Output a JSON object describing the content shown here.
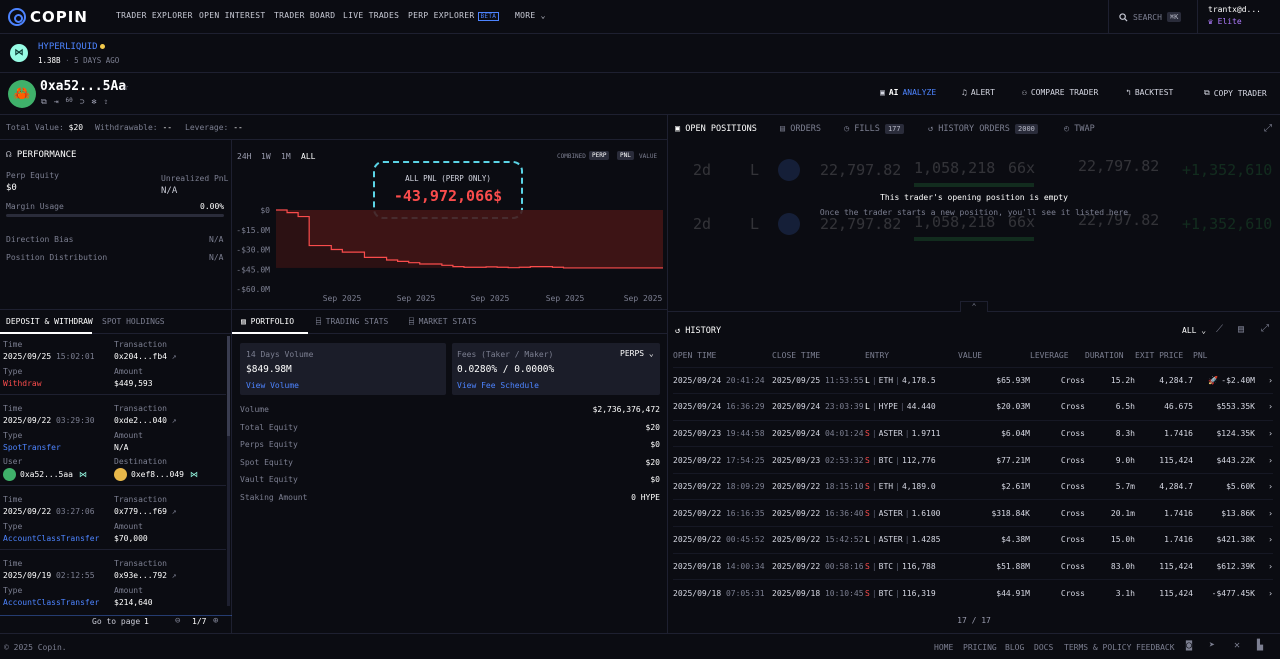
{
  "nav": {
    "brand": "COPIN",
    "items": [
      "TRADER EXPLORER",
      "OPEN INTEREST",
      "TRADER BOARD",
      "LIVE TRADES",
      "PERP EXPLORER"
    ],
    "beta": "BETA",
    "more": "MORE",
    "search_label": "SEARCH",
    "search_kbd": "⌘K",
    "user": "trantx@d...",
    "tier": "Elite"
  },
  "protocol": {
    "name": "HYPERLIQUID",
    "volume": "1.38B",
    "updated": "5 DAYS AGO"
  },
  "trader": {
    "address": "0xa52...5Aa",
    "actions": [
      "AI",
      "ANALYZE",
      "ALERT",
      "COMPARE TRADER",
      "BACKTEST",
      "COPY TRADER"
    ]
  },
  "summary": {
    "total_value_label": "Total Value:",
    "total_value": "$20",
    "withdrawable_label": "Withdrawable:",
    "withdrawable": "--",
    "leverage_label": "Leverage:",
    "leverage": "--"
  },
  "performance": {
    "title": "PERFORMANCE",
    "perp_equity_label": "Perp Equity",
    "perp_equity": "$0",
    "unrealized_label": "Unrealized PnL",
    "unrealized": "N/A",
    "margin_label": "Margin Usage",
    "margin": "0.00%",
    "direction_label": "Direction Bias",
    "direction": "N/A",
    "distribution_label": "Position Distribution",
    "distribution": "N/A"
  },
  "chart_controls": {
    "ranges": [
      "24H",
      "1W",
      "1M",
      "ALL"
    ],
    "combined": "COMBINED",
    "perp": "PERP",
    "pnl": "PNL",
    "value": "VALUE"
  },
  "chart_data": {
    "type": "area",
    "title": "ALL PNL (PERP ONLY)",
    "headline": "-43,972,066$",
    "y_ticks": [
      "$0",
      "-$15.0M",
      "-$30.0M",
      "-$45.0M",
      "-$60.0M"
    ],
    "x_ticks": [
      "Sep 2025",
      "Sep 2025",
      "Sep 2025",
      "Sep 2025",
      "Sep 2025"
    ],
    "ylim": [
      -60,
      0
    ],
    "values": [
      0,
      -2,
      -5,
      -27,
      -27,
      -30,
      -32,
      -32,
      -36,
      -36,
      -38,
      -39,
      -40,
      -41,
      -41,
      -42,
      -43,
      -43.5,
      -43.5,
      -43.2,
      -43.5,
      -43.8,
      -43.5,
      -43,
      -43,
      -43.5,
      -44,
      -44,
      -44,
      -44,
      -44,
      -44,
      -44,
      -44,
      -44,
      -44
    ]
  },
  "positions_tabs": {
    "open": "OPEN POSITIONS",
    "orders": "ORDERS",
    "fills": "FILLS",
    "fills_count": "177",
    "history": "HISTORY ORDERS",
    "history_count": "2000",
    "twap": "TWAP"
  },
  "empty": {
    "title": "This trader's opening position is empty",
    "subtitle": "Once the trader starts a new position, you'll see it listed here",
    "ghost_rows": [
      {
        "age": "2d",
        "side": "L",
        "value": "22,797.82",
        "size": "1,058,218",
        "lev": "66x",
        "pnl": "22,797.82",
        "roi": "+1,352,610"
      },
      {
        "age": "2d",
        "side": "L",
        "value": "22,797.82",
        "size": "1,058,218",
        "lev": "66x",
        "pnl": "22,797.82",
        "roi": "+1,352,610"
      }
    ]
  },
  "deposit_tabs": {
    "deposit": "DEPOSIT & WITHDRAW",
    "spot": "SPOT HOLDINGS"
  },
  "deposits": [
    {
      "time": "2025/09/25",
      "clock": "15:02:01",
      "tx": "0x204...fb4",
      "type": "Withdraw",
      "amount": "$449,593",
      "type_color": "#fa4c4c"
    },
    {
      "time": "2025/09/22",
      "clock": "03:29:30",
      "tx": "0xde2...040",
      "type": "SpotTransfer",
      "amount": "N/A",
      "type_color": "#4d84ff",
      "user": "0xa52...5aa",
      "dest": "0xef8...049"
    },
    {
      "time": "2025/09/22",
      "clock": "03:27:06",
      "tx": "0x779...f69",
      "type": "AccountClassTransfer",
      "amount": "$70,000",
      "type_color": "#4d84ff"
    },
    {
      "time": "2025/09/19",
      "clock": "02:12:55",
      "tx": "0x93e...792",
      "type": "AccountClassTransfer",
      "amount": "$214,640",
      "type_color": "#4d84ff"
    }
  ],
  "deposit_labels": {
    "time": "Time",
    "transaction": "Transaction",
    "type": "Type",
    "amount": "Amount",
    "user": "User",
    "destination": "Destination"
  },
  "pager": {
    "goto": "Go to page",
    "page": "1",
    "of": "1/7"
  },
  "portfolio_tabs": {
    "portfolio": "PORTFOLIO",
    "trading": "TRADING STATS",
    "market": "MARKET STATS"
  },
  "portfolio": {
    "vol_label": "14 Days Volume",
    "vol": "$849.98M",
    "vol_link": "View Volume",
    "fee_label": "Fees (Taker / Maker)",
    "fee_mode": "PERPS",
    "fee": "0.0280% / 0.0000%",
    "fee_link": "View Fee Schedule",
    "rows": [
      {
        "label": "Volume",
        "value": "$2,736,376,472"
      },
      {
        "label": "Total Equity",
        "value": "$20"
      },
      {
        "label": "Perps Equity",
        "value": "$0"
      },
      {
        "label": "Spot Equity",
        "value": "$20"
      },
      {
        "label": "Vault Equity",
        "value": "$0"
      },
      {
        "label": "Staking Amount",
        "value": "0 HYPE"
      }
    ]
  },
  "history": {
    "title": "HISTORY",
    "filter": "ALL",
    "headers": [
      "OPEN TIME",
      "CLOSE TIME",
      "ENTRY",
      "VALUE",
      "LEVERAGE",
      "DURATION",
      "EXIT PRICE",
      "PNL"
    ],
    "rows": [
      {
        "open_d": "2025/09/24",
        "open_t": "20:41:24",
        "close_d": "2025/09/25",
        "close_t": "11:53:55",
        "side": "L",
        "token": "ETH",
        "entry": "4,178.5",
        "value": "$65.93M",
        "lev": "Cross",
        "dur": "15.2h",
        "exit": "4,284.7",
        "pnl": "-$2.40M",
        "pos": false,
        "flag": true
      },
      {
        "open_d": "2025/09/24",
        "open_t": "16:36:29",
        "close_d": "2025/09/24",
        "close_t": "23:03:39",
        "side": "L",
        "token": "HYPE",
        "entry": "44.440",
        "value": "$20.03M",
        "lev": "Cross",
        "dur": "6.5h",
        "exit": "46.675",
        "pnl": "$553.35K",
        "pos": true
      },
      {
        "open_d": "2025/09/23",
        "open_t": "19:44:58",
        "close_d": "2025/09/24",
        "close_t": "04:01:24",
        "side": "S",
        "token": "ASTER",
        "entry": "1.9711",
        "value": "$6.04M",
        "lev": "Cross",
        "dur": "8.3h",
        "exit": "1.7416",
        "pnl": "$124.35K",
        "pos": true
      },
      {
        "open_d": "2025/09/22",
        "open_t": "17:54:25",
        "close_d": "2025/09/23",
        "close_t": "02:53:32",
        "side": "S",
        "token": "BTC",
        "entry": "112,776",
        "value": "$77.21M",
        "lev": "Cross",
        "dur": "9.0h",
        "exit": "115,424",
        "pnl": "$443.22K",
        "pos": true
      },
      {
        "open_d": "2025/09/22",
        "open_t": "18:09:29",
        "close_d": "2025/09/22",
        "close_t": "18:15:10",
        "side": "S",
        "token": "ETH",
        "entry": "4,189.0",
        "value": "$2.61M",
        "lev": "Cross",
        "dur": "5.7m",
        "exit": "4,284.7",
        "pnl": "$5.60K",
        "pos": true
      },
      {
        "open_d": "2025/09/22",
        "open_t": "16:16:35",
        "close_d": "2025/09/22",
        "close_t": "16:36:40",
        "side": "S",
        "token": "ASTER",
        "entry": "1.6100",
        "value": "$318.84K",
        "lev": "Cross",
        "dur": "20.1m",
        "exit": "1.7416",
        "pnl": "$13.86K",
        "pos": true
      },
      {
        "open_d": "2025/09/22",
        "open_t": "00:45:52",
        "close_d": "2025/09/22",
        "close_t": "15:42:52",
        "side": "L",
        "token": "ASTER",
        "entry": "1.4285",
        "value": "$4.38M",
        "lev": "Cross",
        "dur": "15.0h",
        "exit": "1.7416",
        "pnl": "$421.38K",
        "pos": true
      },
      {
        "open_d": "2025/09/18",
        "open_t": "14:00:34",
        "close_d": "2025/09/22",
        "close_t": "00:58:16",
        "side": "S",
        "token": "BTC",
        "entry": "116,788",
        "value": "$51.88M",
        "lev": "Cross",
        "dur": "83.0h",
        "exit": "115,424",
        "pnl": "$612.39K",
        "pos": true
      },
      {
        "open_d": "2025/09/18",
        "open_t": "07:05:31",
        "close_d": "2025/09/18",
        "close_t": "10:10:45",
        "side": "S",
        "token": "BTC",
        "entry": "116,319",
        "value": "$44.91M",
        "lev": "Cross",
        "dur": "3.1h",
        "exit": "115,424",
        "pnl": "-$477.45K",
        "pos": false
      }
    ],
    "count": "17 / 17"
  },
  "footer": {
    "copyright": "© 2025 Copin.",
    "links": [
      "HOME",
      "PRICING",
      "BLOG",
      "DOCS",
      "TERMS & POLICY",
      "FEEDBACK"
    ]
  }
}
